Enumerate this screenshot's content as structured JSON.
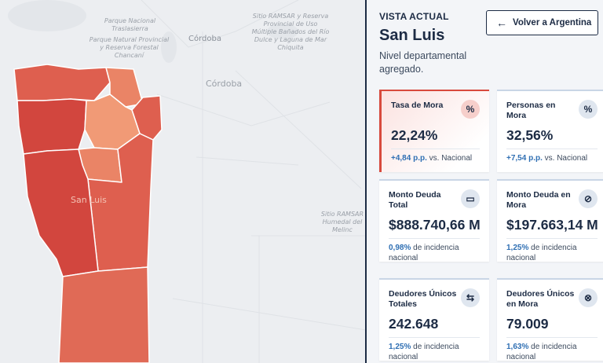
{
  "map": {
    "places": [
      {
        "text": "Parque Nacional Traslasierra"
      },
      {
        "text": "Parque Natural Provincial y Reserva Forestal Chancaní"
      },
      {
        "text": "Sitio RAMSAR y Reserva Provincial de Uso Múltiple Bañados del Río Dulce y Laguna de Mar Chiquita"
      },
      {
        "text": "Sitio RAMSAR Humedal del Melinc"
      }
    ],
    "cities": [
      "Córdoba"
    ],
    "regions": [
      "Córdoba",
      "San Luis"
    ],
    "colors": {
      "dark": "#d2463e",
      "mid": "#de5f4f",
      "light": "#ea8466",
      "lighter": "#f19a76"
    }
  },
  "panel": {
    "eyebrow": "VISTA ACTUAL",
    "title": "San Luis",
    "subtitle": "Nivel departamental agregado.",
    "back_button": "Volver a Argentina",
    "cards": [
      {
        "label": "Tasa de Mora",
        "icon": "percent-icon",
        "glyph": "%",
        "value": "22,24%",
        "note_strong": "+4,84 p.p.",
        "note_rest": " vs. Nacional",
        "active": true
      },
      {
        "label": "Personas en Mora",
        "icon": "percent-icon",
        "glyph": "%",
        "value": "32,56%",
        "note_strong": "+7,54 p.p.",
        "note_rest": " vs. Nacional",
        "active": false
      },
      {
        "label": "Monto Deuda Total",
        "icon": "money-icon",
        "glyph": "▭",
        "value": "$888.740,66 M",
        "note_strong": "0,98%",
        "note_rest": " de incidencia nacional",
        "active": false
      },
      {
        "label": "Monto Deuda en Mora",
        "icon": "money-off-icon",
        "glyph": "⊘",
        "value": "$197.663,14 M",
        "note_strong": "1,25%",
        "note_rest": " de incidencia nacional",
        "active": false
      },
      {
        "label": "Deudores Únicos Totales",
        "icon": "user-transfer-icon",
        "glyph": "⇆",
        "value": "242.648",
        "note_strong": "1,25%",
        "note_rest": " de incidencia nacional",
        "active": false
      },
      {
        "label": "Deudores Únicos en Mora",
        "icon": "user-off-icon",
        "glyph": "⊗",
        "value": "79.009",
        "note_strong": "1,63%",
        "note_rest": " de incidencia nacional",
        "active": false
      }
    ]
  }
}
